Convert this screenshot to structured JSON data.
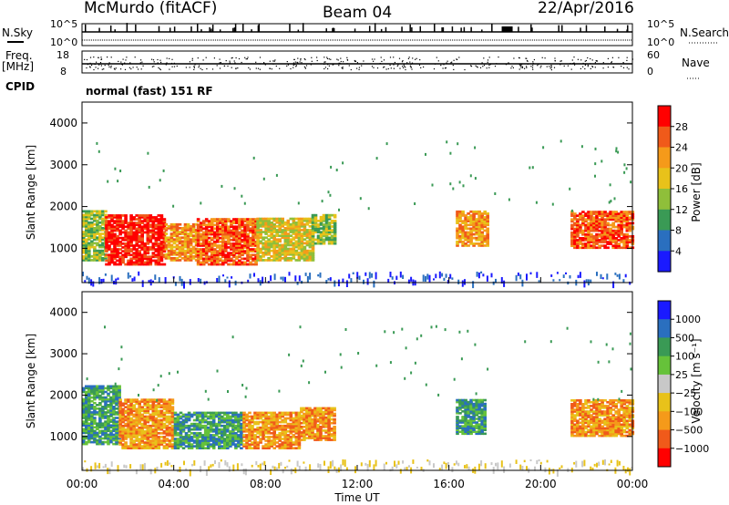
{
  "header": {
    "title": "McMurdo (fitACF)",
    "beam": "Beam 04",
    "date": "22/Apr/2016"
  },
  "aux": {
    "nsky_label": "N.Sky",
    "nsearch_label": "N.Search",
    "freq_label_top": "Freq.",
    "freq_label_unit": "[MHz]",
    "nave_label": "Nave",
    "cpid_label": "CPID",
    "cpid_text": "normal (fast) 151 RF",
    "noise_ticks_left": [
      "10^5",
      "10^0"
    ],
    "noise_ticks_right": [
      "10^5",
      "10^0"
    ],
    "freq_ticks": [
      "18",
      "8"
    ],
    "nave_ticks": [
      "60",
      "0"
    ]
  },
  "colors": {
    "power": [
      "#1a1aff",
      "#2a6fbf",
      "#3a9a55",
      "#8fbf3a",
      "#e8c21a",
      "#f59a1a",
      "#f05a1a",
      "#ff0000"
    ],
    "velocity": [
      "#ff0000",
      "#f05a1a",
      "#f59a1a",
      "#e8c21a",
      "#c8c8c8",
      "#66c23a",
      "#3a9a55",
      "#2a6fbf",
      "#1a1aff"
    ]
  },
  "chart_data": [
    {
      "type": "heatmap",
      "panel": "power",
      "ylabel": "Slant Range [km]",
      "yticks": [
        "4000",
        "3000",
        "2000",
        "1000"
      ],
      "ylim": [
        180,
        4500
      ],
      "colorbar_label": "Power [dB]",
      "colorbar_ticks": [
        "28",
        "24",
        "20",
        "16",
        "12",
        "8",
        "4"
      ],
      "regions": [
        {
          "t0": 0.0,
          "t1": 1.0,
          "r0": 700,
          "r1": 1900,
          "level": 3
        },
        {
          "t0": 1.0,
          "t1": 3.6,
          "r0": 600,
          "r1": 1800,
          "level": 7
        },
        {
          "t0": 3.6,
          "t1": 5.0,
          "r0": 700,
          "r1": 1600,
          "level": 5
        },
        {
          "t0": 5.0,
          "t1": 7.6,
          "r0": 600,
          "r1": 1700,
          "level": 6
        },
        {
          "t0": 7.6,
          "t1": 10.0,
          "r0": 700,
          "r1": 1700,
          "level": 4
        },
        {
          "t0": 10.0,
          "t1": 11.0,
          "r0": 1100,
          "r1": 1800,
          "level": 3
        },
        {
          "t0": 16.3,
          "t1": 17.7,
          "r0": 1050,
          "r1": 1900,
          "level": 5
        },
        {
          "t0": 21.3,
          "t1": 24.0,
          "r0": 1000,
          "r1": 1900,
          "level": 6
        }
      ]
    },
    {
      "type": "heatmap",
      "panel": "velocity",
      "xlabel": "Time UT",
      "ylabel": "Slant Range [km]",
      "yticks": [
        "4000",
        "3000",
        "2000",
        "1000"
      ],
      "ylim": [
        180,
        4500
      ],
      "xticks": [
        "00:00",
        "04:00",
        "08:00",
        "12:00",
        "16:00",
        "20:00",
        "00:00"
      ],
      "colorbar_label": "Velocity [m s⁻¹]",
      "colorbar_ticks": [
        "1000",
        "500",
        "100",
        "25",
        "−25",
        "−100",
        "−500",
        "−1000"
      ],
      "regions": [
        {
          "t0": 0.0,
          "t1": 1.6,
          "r0": 800,
          "r1": 2200,
          "level": 6
        },
        {
          "t0": 1.6,
          "t1": 4.0,
          "r0": 700,
          "r1": 1900,
          "level": 2
        },
        {
          "t0": 4.0,
          "t1": 7.0,
          "r0": 700,
          "r1": 1600,
          "level": 6
        },
        {
          "t0": 7.0,
          "t1": 9.5,
          "r0": 700,
          "r1": 1600,
          "level": 2
        },
        {
          "t0": 9.5,
          "t1": 11.0,
          "r0": 900,
          "r1": 1700,
          "level": 2
        },
        {
          "t0": 16.3,
          "t1": 17.6,
          "r0": 1050,
          "r1": 1900,
          "level": 6
        },
        {
          "t0": 21.3,
          "t1": 24.0,
          "r0": 1000,
          "r1": 1900,
          "level": 2
        }
      ]
    }
  ]
}
